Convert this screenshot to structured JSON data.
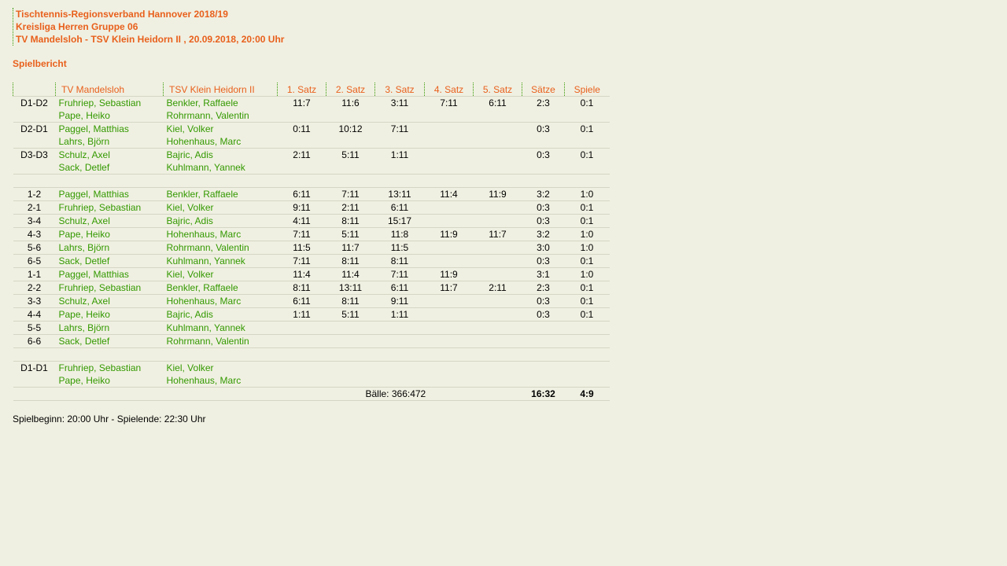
{
  "header": {
    "title": "Tischtennis-Regionsverband Hannover 2018/19",
    "league": "Kreisliga Herren Gruppe 06",
    "match": "TV Mandelsloh - TSV Klein Heidorn II , 20.09.2018, 20:00 Uhr"
  },
  "subtitle": "Spielbericht",
  "columns": [
    "",
    "TV Mandelsloh",
    "TSV Klein Heidorn II",
    "1. Satz",
    "2. Satz",
    "3. Satz",
    "4. Satz",
    "5. Satz",
    "Sätze",
    "Spiele"
  ],
  "rows": [
    {
      "pos": "D1-D2",
      "home": [
        "Fruhriep, Sebastian",
        "Pape, Heiko"
      ],
      "guest": [
        "Benkler, Raffaele",
        "Rohrmann, Valentin"
      ],
      "sets": [
        "11:7",
        "11:6",
        "3:11",
        "7:11",
        "6:11"
      ],
      "saetze": "2:3",
      "spiele": "0:1"
    },
    {
      "pos": "D2-D1",
      "home": [
        "Paggel, Matthias",
        "Lahrs, Björn"
      ],
      "guest": [
        "Kiel, Volker",
        "Hohenhaus, Marc"
      ],
      "sets": [
        "0:11",
        "10:12",
        "7:11",
        "",
        ""
      ],
      "saetze": "0:3",
      "spiele": "0:1"
    },
    {
      "pos": "D3-D3",
      "home": [
        "Schulz, Axel",
        "Sack, Detlef"
      ],
      "guest": [
        "Bajric, Adis",
        "Kuhlmann, Yannek"
      ],
      "sets": [
        "2:11",
        "5:11",
        "1:11",
        "",
        ""
      ],
      "saetze": "0:3",
      "spiele": "0:1"
    },
    {
      "empty": true
    },
    {
      "pos": "1-2",
      "home": [
        "Paggel, Matthias"
      ],
      "guest": [
        "Benkler, Raffaele"
      ],
      "sets": [
        "6:11",
        "7:11",
        "13:11",
        "11:4",
        "11:9"
      ],
      "saetze": "3:2",
      "spiele": "1:0"
    },
    {
      "pos": "2-1",
      "home": [
        "Fruhriep, Sebastian"
      ],
      "guest": [
        "Kiel, Volker"
      ],
      "sets": [
        "9:11",
        "2:11",
        "6:11",
        "",
        ""
      ],
      "saetze": "0:3",
      "spiele": "0:1"
    },
    {
      "pos": "3-4",
      "home": [
        "Schulz, Axel"
      ],
      "guest": [
        "Bajric, Adis"
      ],
      "sets": [
        "4:11",
        "8:11",
        "15:17",
        "",
        ""
      ],
      "saetze": "0:3",
      "spiele": "0:1"
    },
    {
      "pos": "4-3",
      "home": [
        "Pape, Heiko"
      ],
      "guest": [
        "Hohenhaus, Marc"
      ],
      "sets": [
        "7:11",
        "5:11",
        "11:8",
        "11:9",
        "11:7"
      ],
      "saetze": "3:2",
      "spiele": "1:0"
    },
    {
      "pos": "5-6",
      "home": [
        "Lahrs, Björn"
      ],
      "guest": [
        "Rohrmann, Valentin"
      ],
      "sets": [
        "11:5",
        "11:7",
        "11:5",
        "",
        ""
      ],
      "saetze": "3:0",
      "spiele": "1:0"
    },
    {
      "pos": "6-5",
      "home": [
        "Sack, Detlef"
      ],
      "guest": [
        "Kuhlmann, Yannek"
      ],
      "sets": [
        "7:11",
        "8:11",
        "8:11",
        "",
        ""
      ],
      "saetze": "0:3",
      "spiele": "0:1"
    },
    {
      "pos": "1-1",
      "home": [
        "Paggel, Matthias"
      ],
      "guest": [
        "Kiel, Volker"
      ],
      "sets": [
        "11:4",
        "11:4",
        "7:11",
        "11:9",
        ""
      ],
      "saetze": "3:1",
      "spiele": "1:0"
    },
    {
      "pos": "2-2",
      "home": [
        "Fruhriep, Sebastian"
      ],
      "guest": [
        "Benkler, Raffaele"
      ],
      "sets": [
        "8:11",
        "13:11",
        "6:11",
        "11:7",
        "2:11"
      ],
      "saetze": "2:3",
      "spiele": "0:1"
    },
    {
      "pos": "3-3",
      "home": [
        "Schulz, Axel"
      ],
      "guest": [
        "Hohenhaus, Marc"
      ],
      "sets": [
        "6:11",
        "8:11",
        "9:11",
        "",
        ""
      ],
      "saetze": "0:3",
      "spiele": "0:1"
    },
    {
      "pos": "4-4",
      "home": [
        "Pape, Heiko"
      ],
      "guest": [
        "Bajric, Adis"
      ],
      "sets": [
        "1:11",
        "5:11",
        "1:11",
        "",
        ""
      ],
      "saetze": "0:3",
      "spiele": "0:1"
    },
    {
      "pos": "5-5",
      "home": [
        "Lahrs, Björn"
      ],
      "guest": [
        "Kuhlmann, Yannek"
      ],
      "sets": [
        "",
        "",
        "",
        "",
        ""
      ],
      "saetze": "",
      "spiele": ""
    },
    {
      "pos": "6-6",
      "home": [
        "Sack, Detlef"
      ],
      "guest": [
        "Rohrmann, Valentin"
      ],
      "sets": [
        "",
        "",
        "",
        "",
        ""
      ],
      "saetze": "",
      "spiele": ""
    },
    {
      "empty": true
    },
    {
      "pos": "D1-D1",
      "home": [
        "Fruhriep, Sebastian",
        "Pape, Heiko"
      ],
      "guest": [
        "Kiel, Volker",
        "Hohenhaus, Marc"
      ],
      "sets": [
        "",
        "",
        "",
        "",
        ""
      ],
      "saetze": "",
      "spiele": ""
    }
  ],
  "totals": {
    "balls": "Bälle: 366:472",
    "saetze": "16:32",
    "spiele": "4:9"
  },
  "footer": "Spielbeginn: 20:00 Uhr - Spielende: 22:30 Uhr",
  "colors": {
    "accent": "#e8601c",
    "link": "#339900",
    "background": "#f0f0e2"
  }
}
